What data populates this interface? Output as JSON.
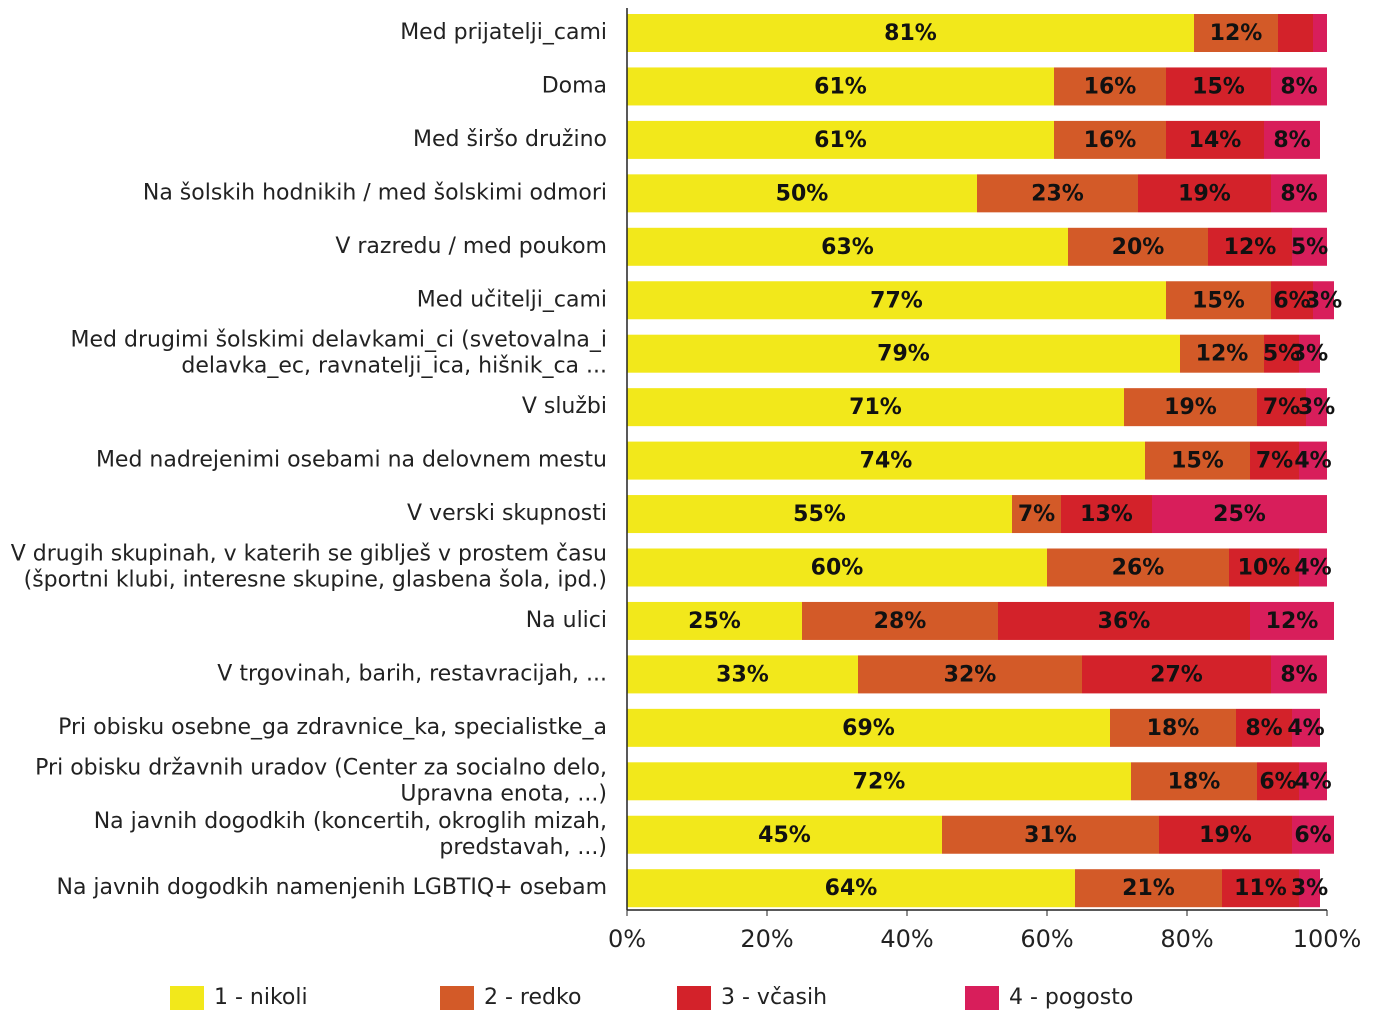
{
  "chart_data": {
    "type": "stacked_barh",
    "categories": [
      "Med prijatelji_cami",
      "Doma",
      "Med širšo družino",
      "Na šolskih hodnikih / med šolskimi odmori",
      "V razredu / med poukom",
      "Med učitelji_cami",
      "Med drugimi šolskimi delavkami_ci (svetovalna_i\ndelavka_ec, ravnatelji_ica, hišnik_ca ...",
      "V službi",
      "Med nadrejenimi osebami na delovnem mestu",
      "V verski skupnosti",
      "V drugih skupinah, v katerih se giblješ v prostem času\n(športni klubi, interesne skupine, glasbena šola, ipd.)",
      "Na ulici",
      "V trgovinah, barih, restavracijah, ...",
      "Pri obisku osebne_ga zdravnice_ka, specialistke_a",
      "Pri obisku državnih uradov (Center za socialno delo,\nUpravna enota, ...)",
      "Na javnih dogodkih (koncertih, okroglih mizah,\npredstavah, ...)",
      "Na javnih dogodkih namenjenih LGBTIQ+ osebam"
    ],
    "series": [
      {
        "name": "1 - nikoli",
        "color": "#f2e81b",
        "values": [
          81,
          61,
          61,
          50,
          63,
          77,
          79,
          71,
          74,
          55,
          60,
          25,
          33,
          69,
          72,
          45,
          64
        ],
        "value_labels": [
          "81%",
          "61%",
          "61%",
          "50%",
          "63%",
          "77%",
          "79%",
          "71%",
          "74%",
          "55%",
          "60%",
          "25%",
          "33%",
          "69%",
          "72%",
          "45%",
          "64%"
        ]
      },
      {
        "name": "2 - redko",
        "color": "#d35a28",
        "values": [
          12,
          16,
          16,
          23,
          20,
          15,
          12,
          19,
          15,
          7,
          26,
          28,
          32,
          18,
          18,
          31,
          21
        ],
        "value_labels": [
          "12%",
          "16%",
          "16%",
          "23%",
          "20%",
          "15%",
          "12%",
          "19%",
          "15%",
          "7%",
          "26%",
          "28%",
          "32%",
          "18%",
          "18%",
          "31%",
          "21%"
        ]
      },
      {
        "name": "3 - včasih",
        "color": "#d3222a",
        "values": [
          5,
          15,
          14,
          19,
          12,
          6,
          5,
          7,
          7,
          13,
          10,
          36,
          27,
          8,
          6,
          19,
          11
        ],
        "value_labels": [
          null,
          "15%",
          "14%",
          "19%",
          "12%",
          "6%",
          "5%",
          "7%",
          "7%",
          "13%",
          "10%",
          "36%",
          "27%",
          "8%",
          "6%",
          "19%",
          "11%"
        ]
      },
      {
        "name": "4 - pogosto",
        "color": "#d81e5b",
        "values": [
          2,
          8,
          8,
          8,
          5,
          3,
          3,
          3,
          4,
          25,
          4,
          12,
          8,
          4,
          4,
          6,
          3
        ],
        "value_labels": [
          null,
          "8%",
          "8%",
          "8%",
          "5%",
          "3%",
          "3%",
          "3%",
          "4%",
          "25%",
          "4%",
          "12%",
          "8%",
          "4%",
          "4%",
          "6%",
          "3%"
        ]
      }
    ],
    "xlim": [
      0,
      100
    ],
    "xticks": [
      {
        "value": 0,
        "label": "0%"
      },
      {
        "value": 20,
        "label": "20%"
      },
      {
        "value": 40,
        "label": "40%"
      },
      {
        "value": 60,
        "label": "60%"
      },
      {
        "value": 80,
        "label": "80%"
      },
      {
        "value": 100,
        "label": "100%"
      }
    ],
    "legend": "bottom"
  }
}
